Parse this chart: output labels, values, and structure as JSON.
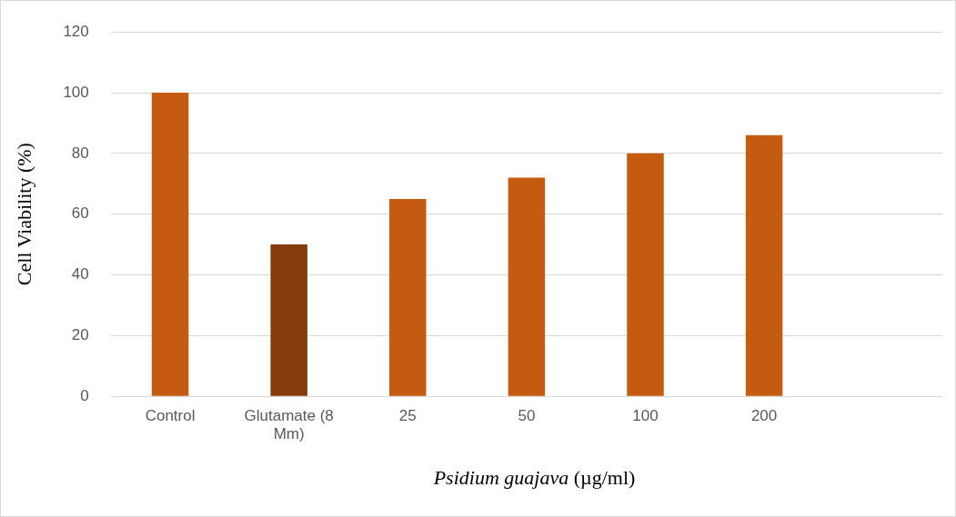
{
  "chart_data": {
    "type": "bar",
    "categories": [
      "Control",
      "Glutamate (8 Mm)",
      "25",
      "50",
      "100",
      "200",
      null
    ],
    "values": [
      100,
      50,
      65,
      72,
      80,
      86,
      null
    ],
    "colors": [
      "#c55a11",
      "#843c0c",
      "#c55a11",
      "#c55a11",
      "#c55a11",
      "#c55a11",
      "#c55a11"
    ],
    "xlabel": "Psidium guajava (µg/ml)",
    "ylabel": "Cell Viability (%)",
    "ylim": [
      0,
      120
    ],
    "yticks": [
      0,
      20,
      40,
      60,
      80,
      100,
      120
    ],
    "grid": "y",
    "legend": false
  }
}
